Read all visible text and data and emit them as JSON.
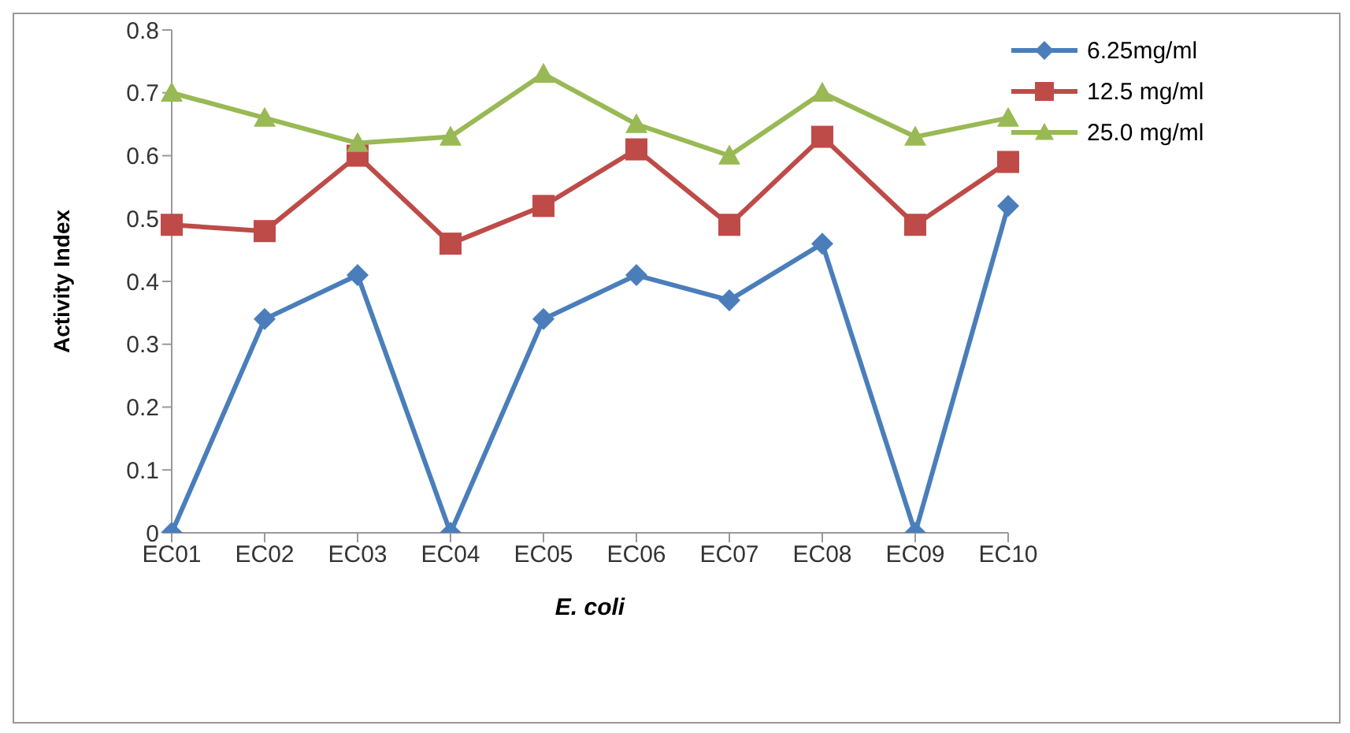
{
  "chart_data": {
    "type": "line",
    "xlabel": "E. coli",
    "ylabel": "Activity Index",
    "categories": [
      "EC01",
      "EC02",
      "EC03",
      "EC04",
      "EC05",
      "EC06",
      "EC07",
      "EC08",
      "EC09",
      "EC10"
    ],
    "series": [
      {
        "name": "6.25mg/ml",
        "color": "#4a7ebb",
        "marker": "diamond",
        "values": [
          0,
          0.34,
          0.41,
          0,
          0.34,
          0.41,
          0.37,
          0.46,
          0,
          0.52
        ]
      },
      {
        "name": "12.5 mg/ml",
        "color": "#be4b48",
        "marker": "square",
        "values": [
          0.49,
          0.48,
          0.6,
          0.46,
          0.52,
          0.61,
          0.49,
          0.63,
          0.49,
          0.59
        ]
      },
      {
        "name": "25.0 mg/ml",
        "color": "#98b954",
        "marker": "triangle",
        "values": [
          0.7,
          0.66,
          0.62,
          0.63,
          0.73,
          0.65,
          0.6,
          0.7,
          0.63,
          0.66
        ]
      }
    ],
    "ylim": [
      0,
      0.8
    ],
    "yticks": [
      0,
      0.1,
      0.2,
      0.3,
      0.4,
      0.5,
      0.6,
      0.7,
      0.8
    ],
    "grid": false,
    "legend": "top right",
    "line_style": "solid"
  }
}
